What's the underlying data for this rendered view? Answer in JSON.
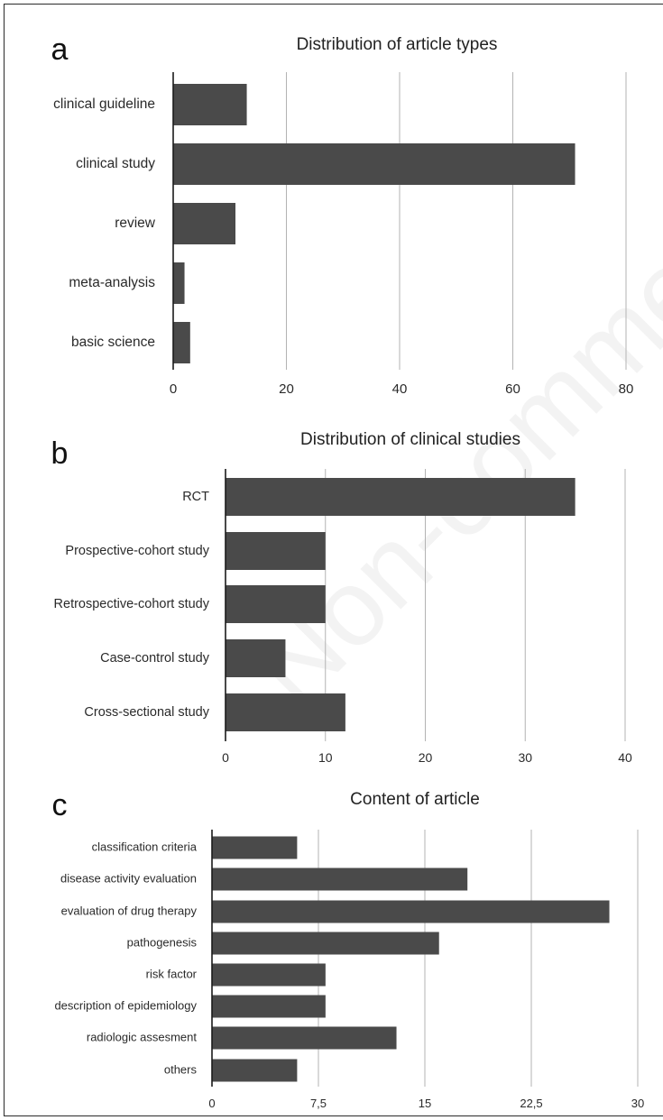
{
  "chart_data": [
    {
      "panel": "a",
      "type": "bar",
      "orientation": "horizontal",
      "title": "Distribution of article types",
      "categories": [
        "clinical guideline",
        "clinical study",
        "review",
        "meta-analysis",
        "basic science"
      ],
      "values": [
        13,
        71,
        11,
        2,
        3
      ],
      "xlim": [
        0,
        80
      ],
      "ticks": [
        0,
        20,
        40,
        60,
        80
      ],
      "tick_labels": [
        "0",
        "20",
        "40",
        "60",
        "80"
      ],
      "grid": true,
      "bar_color": "#4a4a4a"
    },
    {
      "panel": "b",
      "type": "bar",
      "orientation": "horizontal",
      "title": "Distribution of clinical studies",
      "categories": [
        "RCT",
        "Prospective-cohort study",
        "Retrospective-cohort study",
        "Case-control study",
        "Cross-sectional study"
      ],
      "values": [
        35,
        10,
        10,
        6,
        12
      ],
      "xlim": [
        0,
        40
      ],
      "ticks": [
        0,
        10,
        20,
        30,
        40
      ],
      "tick_labels": [
        "0",
        "10",
        "20",
        "30",
        "40"
      ],
      "grid": true,
      "bar_color": "#4a4a4a"
    },
    {
      "panel": "c",
      "type": "bar",
      "orientation": "horizontal",
      "title": "Content of article",
      "categories": [
        "classification criteria",
        "disease activity evaluation",
        "evaluation of drug therapy",
        "pathogenesis",
        "risk factor",
        "description of epidemiology",
        "radiologic assesment",
        "others"
      ],
      "values": [
        6,
        18,
        28,
        16,
        8,
        8,
        13,
        6
      ],
      "xlim": [
        0,
        30
      ],
      "ticks": [
        0,
        7.5,
        15,
        22.5,
        30
      ],
      "tick_labels": [
        "0",
        "7,5",
        "15",
        "22,5",
        "30"
      ],
      "grid": true,
      "bar_color": "#4a4a4a"
    }
  ],
  "watermark": "Non-commercial"
}
